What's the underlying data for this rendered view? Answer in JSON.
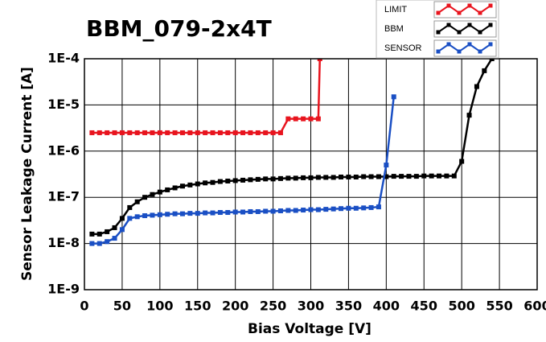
{
  "chart_data": {
    "type": "line",
    "title": "BBM_079-2x4T",
    "x_label": "Bias Voltage [V]",
    "y_label": "Sensor Leakage Current [A]",
    "log_y": true,
    "grid": true,
    "legend": "top-right",
    "xlim": [
      0,
      600
    ],
    "xticks": [
      0,
      50,
      100,
      150,
      200,
      250,
      300,
      350,
      400,
      450,
      500,
      550,
      600
    ],
    "ylim": [
      1e-09,
      0.0001
    ],
    "yticks": [
      {
        "value": 1e-09,
        "label": "1E-9"
      },
      {
        "value": 1e-08,
        "label": "1E-8"
      },
      {
        "value": 1e-07,
        "label": "1E-7"
      },
      {
        "value": 1e-06,
        "label": "1E-6"
      },
      {
        "value": 1e-05,
        "label": "1E-5"
      },
      {
        "value": 0.0001,
        "label": "1E-4"
      }
    ],
    "series": [
      {
        "name": "LIMIT",
        "color": "#e8141e",
        "x": [
          10,
          20,
          30,
          40,
          50,
          60,
          70,
          80,
          90,
          100,
          110,
          120,
          130,
          140,
          150,
          160,
          170,
          180,
          190,
          200,
          210,
          220,
          230,
          240,
          250,
          260,
          270,
          280,
          290,
          300,
          310,
          312
        ],
        "values": [
          2.5e-06,
          2.5e-06,
          2.5e-06,
          2.5e-06,
          2.5e-06,
          2.5e-06,
          2.5e-06,
          2.5e-06,
          2.5e-06,
          2.5e-06,
          2.5e-06,
          2.5e-06,
          2.5e-06,
          2.5e-06,
          2.5e-06,
          2.5e-06,
          2.5e-06,
          2.5e-06,
          2.5e-06,
          2.5e-06,
          2.5e-06,
          2.5e-06,
          2.5e-06,
          2.5e-06,
          2.5e-06,
          2.5e-06,
          5e-06,
          5e-06,
          5e-06,
          5e-06,
          5e-06,
          0.0001
        ]
      },
      {
        "name": "BBM",
        "color": "#000000",
        "x": [
          10,
          20,
          30,
          40,
          50,
          60,
          70,
          80,
          90,
          100,
          110,
          120,
          130,
          140,
          150,
          160,
          170,
          180,
          190,
          200,
          210,
          220,
          230,
          240,
          250,
          260,
          270,
          280,
          290,
          300,
          310,
          320,
          330,
          340,
          350,
          360,
          370,
          380,
          390,
          400,
          410,
          420,
          430,
          440,
          450,
          460,
          470,
          480,
          490,
          500,
          510,
          520,
          530,
          540
        ],
        "values": [
          1.6e-08,
          1.6e-08,
          1.8e-08,
          2.2e-08,
          3.5e-08,
          6e-08,
          8e-08,
          1e-07,
          1.15e-07,
          1.3e-07,
          1.45e-07,
          1.6e-07,
          1.75e-07,
          1.85e-07,
          1.95e-07,
          2.05e-07,
          2.1e-07,
          2.2e-07,
          2.25e-07,
          2.3e-07,
          2.35e-07,
          2.4e-07,
          2.45e-07,
          2.5e-07,
          2.5e-07,
          2.55e-07,
          2.6e-07,
          2.6e-07,
          2.65e-07,
          2.65e-07,
          2.7e-07,
          2.7e-07,
          2.7e-07,
          2.75e-07,
          2.75e-07,
          2.75e-07,
          2.8e-07,
          2.8e-07,
          2.8e-07,
          2.8e-07,
          2.85e-07,
          2.85e-07,
          2.85e-07,
          2.85e-07,
          2.9e-07,
          2.9e-07,
          2.9e-07,
          2.9e-07,
          2.9e-07,
          6e-07,
          6e-06,
          2.5e-05,
          5.5e-05,
          0.0001
        ]
      },
      {
        "name": "SENSOR",
        "color": "#1a4fc4",
        "x": [
          10,
          20,
          30,
          40,
          50,
          60,
          70,
          80,
          90,
          100,
          110,
          120,
          130,
          140,
          150,
          160,
          170,
          180,
          190,
          200,
          210,
          220,
          230,
          240,
          250,
          260,
          270,
          280,
          290,
          300,
          310,
          320,
          330,
          340,
          350,
          360,
          370,
          380,
          390,
          400,
          410
        ],
        "values": [
          1e-08,
          1e-08,
          1.1e-08,
          1.3e-08,
          2e-08,
          3.5e-08,
          3.8e-08,
          4e-08,
          4.1e-08,
          4.2e-08,
          4.3e-08,
          4.4e-08,
          4.4e-08,
          4.5e-08,
          4.5e-08,
          4.6e-08,
          4.6e-08,
          4.7e-08,
          4.7e-08,
          4.8e-08,
          4.8e-08,
          4.9e-08,
          4.9e-08,
          5e-08,
          5e-08,
          5.1e-08,
          5.2e-08,
          5.2e-08,
          5.3e-08,
          5.4e-08,
          5.4e-08,
          5.5e-08,
          5.6e-08,
          5.7e-08,
          5.8e-08,
          5.8e-08,
          5.9e-08,
          6e-08,
          6.2e-08,
          5e-07,
          1.5e-05
        ]
      }
    ]
  }
}
